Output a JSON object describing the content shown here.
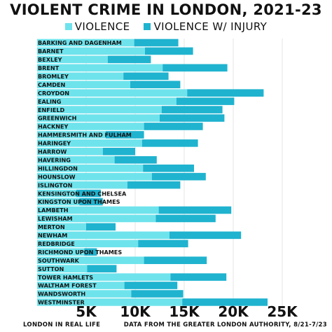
{
  "chart_data": {
    "type": "bar",
    "orientation": "horizontal",
    "stacked": true,
    "title": "VIOLENT CRIME IN LONDON, 2021-23",
    "categories": [
      "BARKING AND DAGENHAM",
      "BARNET",
      "BEXLEY",
      "BRENT",
      "BROMLEY",
      "CAMDEN",
      "CROYDON",
      "EALING",
      "ENFIELD",
      "GREENWICH",
      "HACKNEY",
      "HAMMERSMITH AND FULHAM",
      "HARINGEY",
      "HARROW",
      "HAVERING",
      "HILLINGDON",
      "HOUNSLOW",
      "ISLINGTON",
      "KENSINGTON AND CHELSEA",
      "KINGSTON UPON THAMES",
      "LAMBETH",
      "LEWISHAM",
      "MERTON",
      "NEWHAM",
      "REDBRIDGE",
      "RICHMOND UPON THAMES",
      "SOUTHWARK",
      "SUTTON",
      "TOWER HAMLETS",
      "WALTHAM FOREST",
      "WANDSWORTH",
      "WESTMINSTER"
    ],
    "series": [
      {
        "name": "VIOLENCE",
        "color": "#6fe3ec",
        "values": [
          9900,
          11000,
          7200,
          12800,
          8800,
          9500,
          15300,
          14200,
          12700,
          12500,
          10900,
          7000,
          10700,
          6700,
          7900,
          10800,
          11700,
          9200,
          4000,
          4300,
          12400,
          12100,
          5000,
          13500,
          10300,
          4800,
          10900,
          5100,
          13600,
          8900,
          9600,
          14800
        ]
      },
      {
        "name": "VIOLENCE W/ INJURY",
        "color": "#1fb3cf",
        "values": [
          4500,
          4900,
          4400,
          6600,
          4600,
          5100,
          7800,
          5900,
          6200,
          6600,
          6000,
          3900,
          5700,
          3300,
          4300,
          5200,
          5500,
          5400,
          2500,
          2400,
          7400,
          6100,
          3000,
          7300,
          5100,
          1300,
          6400,
          3000,
          5700,
          5400,
          5300,
          8700
        ]
      }
    ],
    "xaxis": {
      "ticks": [
        "5K",
        "10K",
        "15K",
        "20K",
        "25K"
      ],
      "tick_values": [
        5000,
        10000,
        15000,
        20000,
        25000
      ],
      "range": [
        0,
        25000
      ]
    },
    "legend_position": "top",
    "grid": true
  },
  "footer": {
    "left": "LONDON IN REAL LIFE",
    "right": "DATA FROM THE GREATER LONDON AUTHORITY, 8/21-7/23"
  }
}
